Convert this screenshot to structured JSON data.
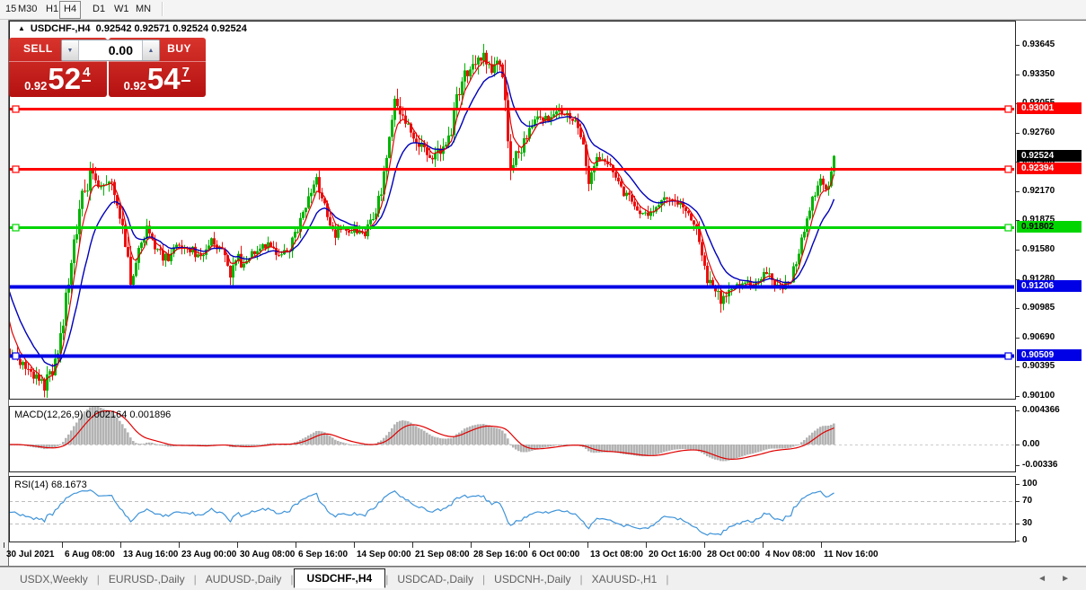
{
  "window": {
    "collapse_icon": "▲",
    "symbol_title": "USDCHF-,H4",
    "ohlc_text": "0.92542 0.92571 0.92524 0.92524"
  },
  "toolbar": {
    "timeframes": [
      {
        "label": "15",
        "active": false
      },
      {
        "label": "M30",
        "active": false
      },
      {
        "label": "H1",
        "active": false
      },
      {
        "label": "H4",
        "active": true
      },
      {
        "label": "D1",
        "active": false
      },
      {
        "label": "W1",
        "active": false
      },
      {
        "label": "MN",
        "active": false
      }
    ]
  },
  "trade_panel": {
    "sell_label": "SELL",
    "buy_label": "BUY",
    "lot_value": "0.00",
    "spin_down": "▼",
    "spin_up": "▲",
    "sell_price": {
      "prefix": "0.92",
      "big": "52",
      "sup": "4"
    },
    "buy_price": {
      "prefix": "0.92",
      "big": "54",
      "sup": "7"
    }
  },
  "price_axis": {
    "ticks": [
      "0.93645",
      "0.93350",
      "0.93055",
      "0.92760",
      "0.92465",
      "0.92170",
      "0.91875",
      "0.91580",
      "0.91280",
      "0.90985",
      "0.90690",
      "0.90395",
      "0.90100"
    ],
    "current_price": "0.92524"
  },
  "hlines": [
    {
      "label": "0.93001",
      "price": 0.93001,
      "color": "#FF0000",
      "text_color": "#FFFFFF",
      "width": 3,
      "handles": true
    },
    {
      "label": "0.92394",
      "price": 0.92394,
      "color": "#FF0000",
      "text_color": "#FFFFFF",
      "width": 3,
      "handles": true
    },
    {
      "label": "0.91802",
      "price": 0.91802,
      "color": "#00D500",
      "text_color": "#000000",
      "width": 3,
      "handles": true
    },
    {
      "label": "0.91206",
      "price": 0.91206,
      "color": "#0000E6",
      "text_color": "#FFFFFF",
      "width": 4,
      "handles": false
    },
    {
      "label": "0.90509",
      "price": 0.90509,
      "color": "#0000E6",
      "text_color": "#FFFFFF",
      "width": 4,
      "handles": true
    }
  ],
  "macd_panel": {
    "title": "MACD(12,26,9)",
    "values": "0.002164 0.001896",
    "ticks": [
      "0.004366",
      "0.00",
      "-0.00336"
    ]
  },
  "rsi_panel": {
    "title": "RSI(14)",
    "value": "68.1673",
    "ticks": [
      "100",
      "70",
      "30",
      "0"
    ]
  },
  "tabs": {
    "items": [
      {
        "label": "USDX,Weekly",
        "active": false
      },
      {
        "label": "EURUSD-,Daily",
        "active": false
      },
      {
        "label": "AUDUSD-,Daily",
        "active": false
      },
      {
        "label": "USDCHF-,H4",
        "active": true
      },
      {
        "label": "USDCAD-,Daily",
        "active": false
      },
      {
        "label": "USDCNH-,Daily",
        "active": false
      },
      {
        "label": "XAUUSD-,H1",
        "active": false
      }
    ],
    "scroll_left": "◄",
    "scroll_right": "►"
  },
  "chart_data": {
    "type": "candlestick",
    "symbol": "USDCHF",
    "timeframe": "H4",
    "title_ohlc": {
      "open": 0.92542,
      "high": 0.92571,
      "low": 0.92524,
      "close": 0.92524
    },
    "bid": 0.92524,
    "ask": 0.92547,
    "price_axis_range": [
      0.901,
      0.93645
    ],
    "horizontal_lines": [
      0.93001,
      0.92394,
      0.91802,
      0.91206,
      0.90509
    ],
    "up_color": "#00B400",
    "down_color": "#EE0F0F",
    "ma_fast": {
      "period": 5,
      "color": "#E00000"
    },
    "ma_slow": {
      "period": 14,
      "color": "#0000BB"
    },
    "macd": {
      "fast": 12,
      "slow": 26,
      "signal": 9,
      "main_value": 0.002164,
      "signal_value": 0.001896,
      "scale_min": -0.00336,
      "scale_max": 0.004366,
      "hist_color": "#B3B3B3",
      "signal_color": "#E00000"
    },
    "rsi": {
      "period": 14,
      "value": 68.1673,
      "levels": [
        30,
        70
      ],
      "scale": [
        0,
        100
      ],
      "color": "#3E93D9"
    },
    "time_labels": [
      "30 Jul 2021",
      "6 Aug 08:00",
      "13 Aug 16:00",
      "23 Aug 00:00",
      "30 Aug 08:00",
      "6 Sep 16:00",
      "14 Sep 00:00",
      "21 Sep 08:00",
      "28 Sep 16:00",
      "6 Oct 00:00",
      "13 Oct 08:00",
      "20 Oct 16:00",
      "28 Oct 00:00",
      "4 Nov 08:00",
      "11 Nov 16:00"
    ],
    "approx_close_path": [
      [
        8,
        0.9058,
        0.0012
      ],
      [
        25,
        0.9042,
        0.0012
      ],
      [
        40,
        0.9028,
        0.0015
      ],
      [
        48,
        0.902,
        0.0018
      ],
      [
        60,
        0.9038,
        0.0018
      ],
      [
        70,
        0.908,
        0.0026
      ],
      [
        80,
        0.916,
        0.003
      ],
      [
        92,
        0.9215,
        0.0026
      ],
      [
        102,
        0.9237,
        0.002
      ],
      [
        112,
        0.9222,
        0.0018
      ],
      [
        122,
        0.9232,
        0.0016
      ],
      [
        133,
        0.9195,
        0.002
      ],
      [
        145,
        0.9128,
        0.002
      ],
      [
        155,
        0.916,
        0.0015
      ],
      [
        163,
        0.9183,
        0.0014
      ],
      [
        175,
        0.9155,
        0.0013
      ],
      [
        185,
        0.9148,
        0.0012
      ],
      [
        197,
        0.9162,
        0.0012
      ],
      [
        210,
        0.916,
        0.0012
      ],
      [
        222,
        0.915,
        0.0012
      ],
      [
        235,
        0.9165,
        0.0012
      ],
      [
        247,
        0.9158,
        0.0014
      ],
      [
        255,
        0.9128,
        0.002
      ],
      [
        263,
        0.915,
        0.0013
      ],
      [
        272,
        0.9142,
        0.0018
      ],
      [
        280,
        0.9155,
        0.0012
      ],
      [
        292,
        0.9165,
        0.0012
      ],
      [
        305,
        0.9158,
        0.0012
      ],
      [
        318,
        0.9152,
        0.0012
      ],
      [
        330,
        0.9175,
        0.0014
      ],
      [
        342,
        0.921,
        0.0016
      ],
      [
        352,
        0.9228,
        0.0015
      ],
      [
        362,
        0.92,
        0.0014
      ],
      [
        372,
        0.9172,
        0.0014
      ],
      [
        382,
        0.9178,
        0.0012
      ],
      [
        393,
        0.918,
        0.0012
      ],
      [
        403,
        0.917,
        0.0012
      ],
      [
        413,
        0.9185,
        0.0013
      ],
      [
        424,
        0.9215,
        0.0016
      ],
      [
        433,
        0.928,
        0.0022
      ],
      [
        440,
        0.931,
        0.0022
      ],
      [
        448,
        0.9295,
        0.0018
      ],
      [
        458,
        0.927,
        0.0016
      ],
      [
        468,
        0.9262,
        0.0015
      ],
      [
        478,
        0.9248,
        0.0015
      ],
      [
        488,
        0.9255,
        0.0015
      ],
      [
        498,
        0.9262,
        0.0016
      ],
      [
        503,
        0.9285,
        0.002
      ],
      [
        508,
        0.9308,
        0.002
      ],
      [
        513,
        0.9326,
        0.0018
      ],
      [
        520,
        0.9338,
        0.0018
      ],
      [
        528,
        0.9348,
        0.0018
      ],
      [
        536,
        0.9352,
        0.002
      ],
      [
        544,
        0.934,
        0.002
      ],
      [
        552,
        0.9346,
        0.0018
      ],
      [
        558,
        0.9345,
        0.0018
      ],
      [
        563,
        0.929,
        0.0045
      ],
      [
        568,
        0.924,
        0.0025
      ],
      [
        573,
        0.9255,
        0.0018
      ],
      [
        578,
        0.9248,
        0.0016
      ],
      [
        587,
        0.9278,
        0.0015
      ],
      [
        597,
        0.9295,
        0.0014
      ],
      [
        607,
        0.929,
        0.0014
      ],
      [
        617,
        0.93,
        0.0014
      ],
      [
        627,
        0.9295,
        0.0014
      ],
      [
        637,
        0.929,
        0.0013
      ],
      [
        647,
        0.927,
        0.0015
      ],
      [
        655,
        0.922,
        0.0022
      ],
      [
        663,
        0.9245,
        0.0015
      ],
      [
        672,
        0.925,
        0.0013
      ],
      [
        682,
        0.924,
        0.0013
      ],
      [
        692,
        0.922,
        0.0014
      ],
      [
        702,
        0.9205,
        0.0014
      ],
      [
        712,
        0.919,
        0.0014
      ],
      [
        722,
        0.9195,
        0.0013
      ],
      [
        732,
        0.9205,
        0.0013
      ],
      [
        742,
        0.9212,
        0.0013
      ],
      [
        752,
        0.9208,
        0.0014
      ],
      [
        762,
        0.9195,
        0.0013
      ],
      [
        772,
        0.9188,
        0.0013
      ],
      [
        780,
        0.916,
        0.0018
      ],
      [
        788,
        0.9122,
        0.0018
      ],
      [
        797,
        0.9115,
        0.0016
      ],
      [
        806,
        0.9105,
        0.0018
      ],
      [
        815,
        0.912,
        0.0013
      ],
      [
        825,
        0.9125,
        0.0012
      ],
      [
        835,
        0.9122,
        0.0012
      ],
      [
        845,
        0.9128,
        0.0013
      ],
      [
        853,
        0.9135,
        0.0016
      ],
      [
        862,
        0.9125,
        0.0013
      ],
      [
        872,
        0.912,
        0.0014
      ],
      [
        880,
        0.9128,
        0.0014
      ],
      [
        888,
        0.915,
        0.0015
      ],
      [
        896,
        0.918,
        0.0016
      ],
      [
        904,
        0.921,
        0.0016
      ],
      [
        912,
        0.9228,
        0.0015
      ],
      [
        919,
        0.9218,
        0.0013
      ],
      [
        926,
        0.9235,
        0.0013
      ],
      [
        930,
        0.92524,
        0.001
      ]
    ]
  }
}
